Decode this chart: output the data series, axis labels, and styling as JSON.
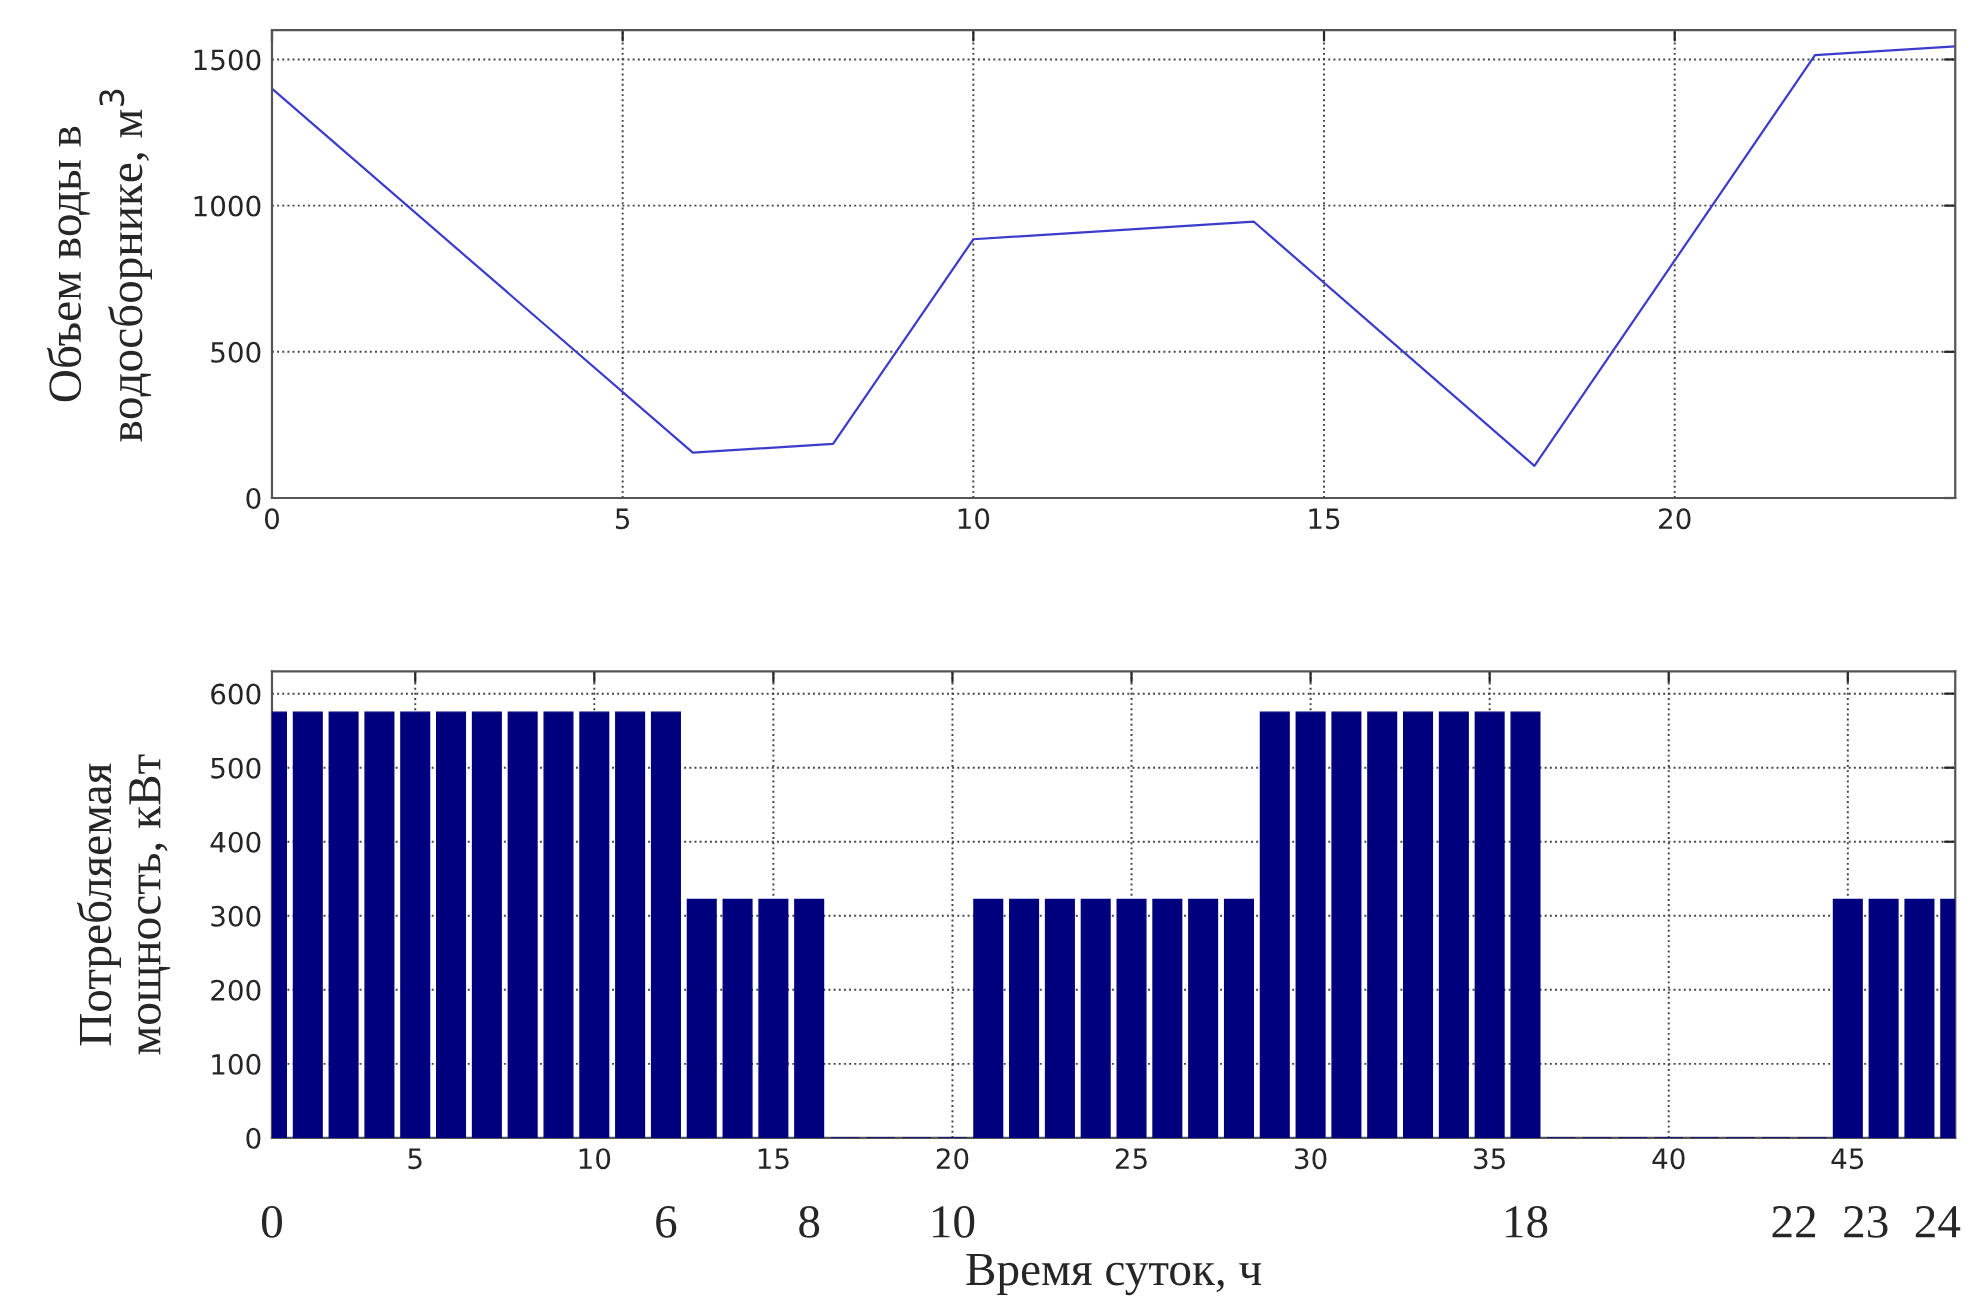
{
  "chart_data": [
    {
      "type": "line",
      "ylabel": "Объем воды в\nводосборнике, м$^{3}$",
      "x": [
        0,
        6,
        8,
        10,
        14,
        18,
        22,
        24
      ],
      "series": [
        {
          "color": "#3c3ccc",
          "values": [
            1400,
            155,
            185,
            885,
            945,
            110,
            1515,
            1545
          ]
        }
      ],
      "xlim": [
        0,
        24
      ],
      "xticks": [
        0,
        5,
        10,
        15,
        20
      ],
      "ylim": [
        0,
        1600
      ],
      "yticks": [
        0,
        500,
        1000,
        1500
      ],
      "grid": true,
      "marker": "none",
      "line_style": "solid"
    },
    {
      "type": "bar",
      "xlabel": "Время суток, ч",
      "ylabel": "Потребляемая\nмощность, кВт",
      "x": [
        1,
        2,
        3,
        4,
        5,
        6,
        7,
        8,
        9,
        10,
        11,
        12,
        13,
        14,
        15,
        16,
        17,
        18,
        19,
        20,
        21,
        22,
        23,
        24,
        25,
        26,
        27,
        28,
        29,
        30,
        31,
        32,
        33,
        34,
        35,
        36,
        37,
        38,
        39,
        40,
        41,
        42,
        43,
        44,
        45,
        46,
        47,
        48
      ],
      "series": [
        {
          "color": "#00007f",
          "values": [
            575,
            575,
            575,
            575,
            575,
            575,
            575,
            575,
            575,
            575,
            575,
            575,
            322,
            322,
            322,
            322,
            0,
            0,
            0,
            0,
            322,
            322,
            322,
            322,
            322,
            322,
            322,
            322,
            575,
            575,
            575,
            575,
            575,
            575,
            575,
            575,
            0,
            0,
            0,
            0,
            0,
            0,
            0,
            0,
            322,
            322,
            322,
            322
          ]
        }
      ],
      "xlim": [
        1,
        48
      ],
      "xticks": [
        5,
        10,
        15,
        20,
        25,
        30,
        35,
        40,
        45
      ],
      "ylim": [
        0,
        630
      ],
      "yticks": [
        0,
        100,
        200,
        300,
        400,
        500,
        600
      ],
      "grid": true,
      "annotations": [
        {
          "text": "0",
          "x": 1,
          "y": 0
        },
        {
          "text": "6",
          "x": 12,
          "y": 0
        },
        {
          "text": "8",
          "x": 16,
          "y": 0
        },
        {
          "text": "10",
          "x": 20,
          "y": 0
        },
        {
          "text": "18",
          "x": 36,
          "y": 0
        },
        {
          "text": "22",
          "x": 43.5,
          "y": 0
        },
        {
          "text": "23",
          "x": 45.5,
          "y": 0
        },
        {
          "text": "24",
          "x": 47.5,
          "y": 0
        }
      ]
    }
  ]
}
